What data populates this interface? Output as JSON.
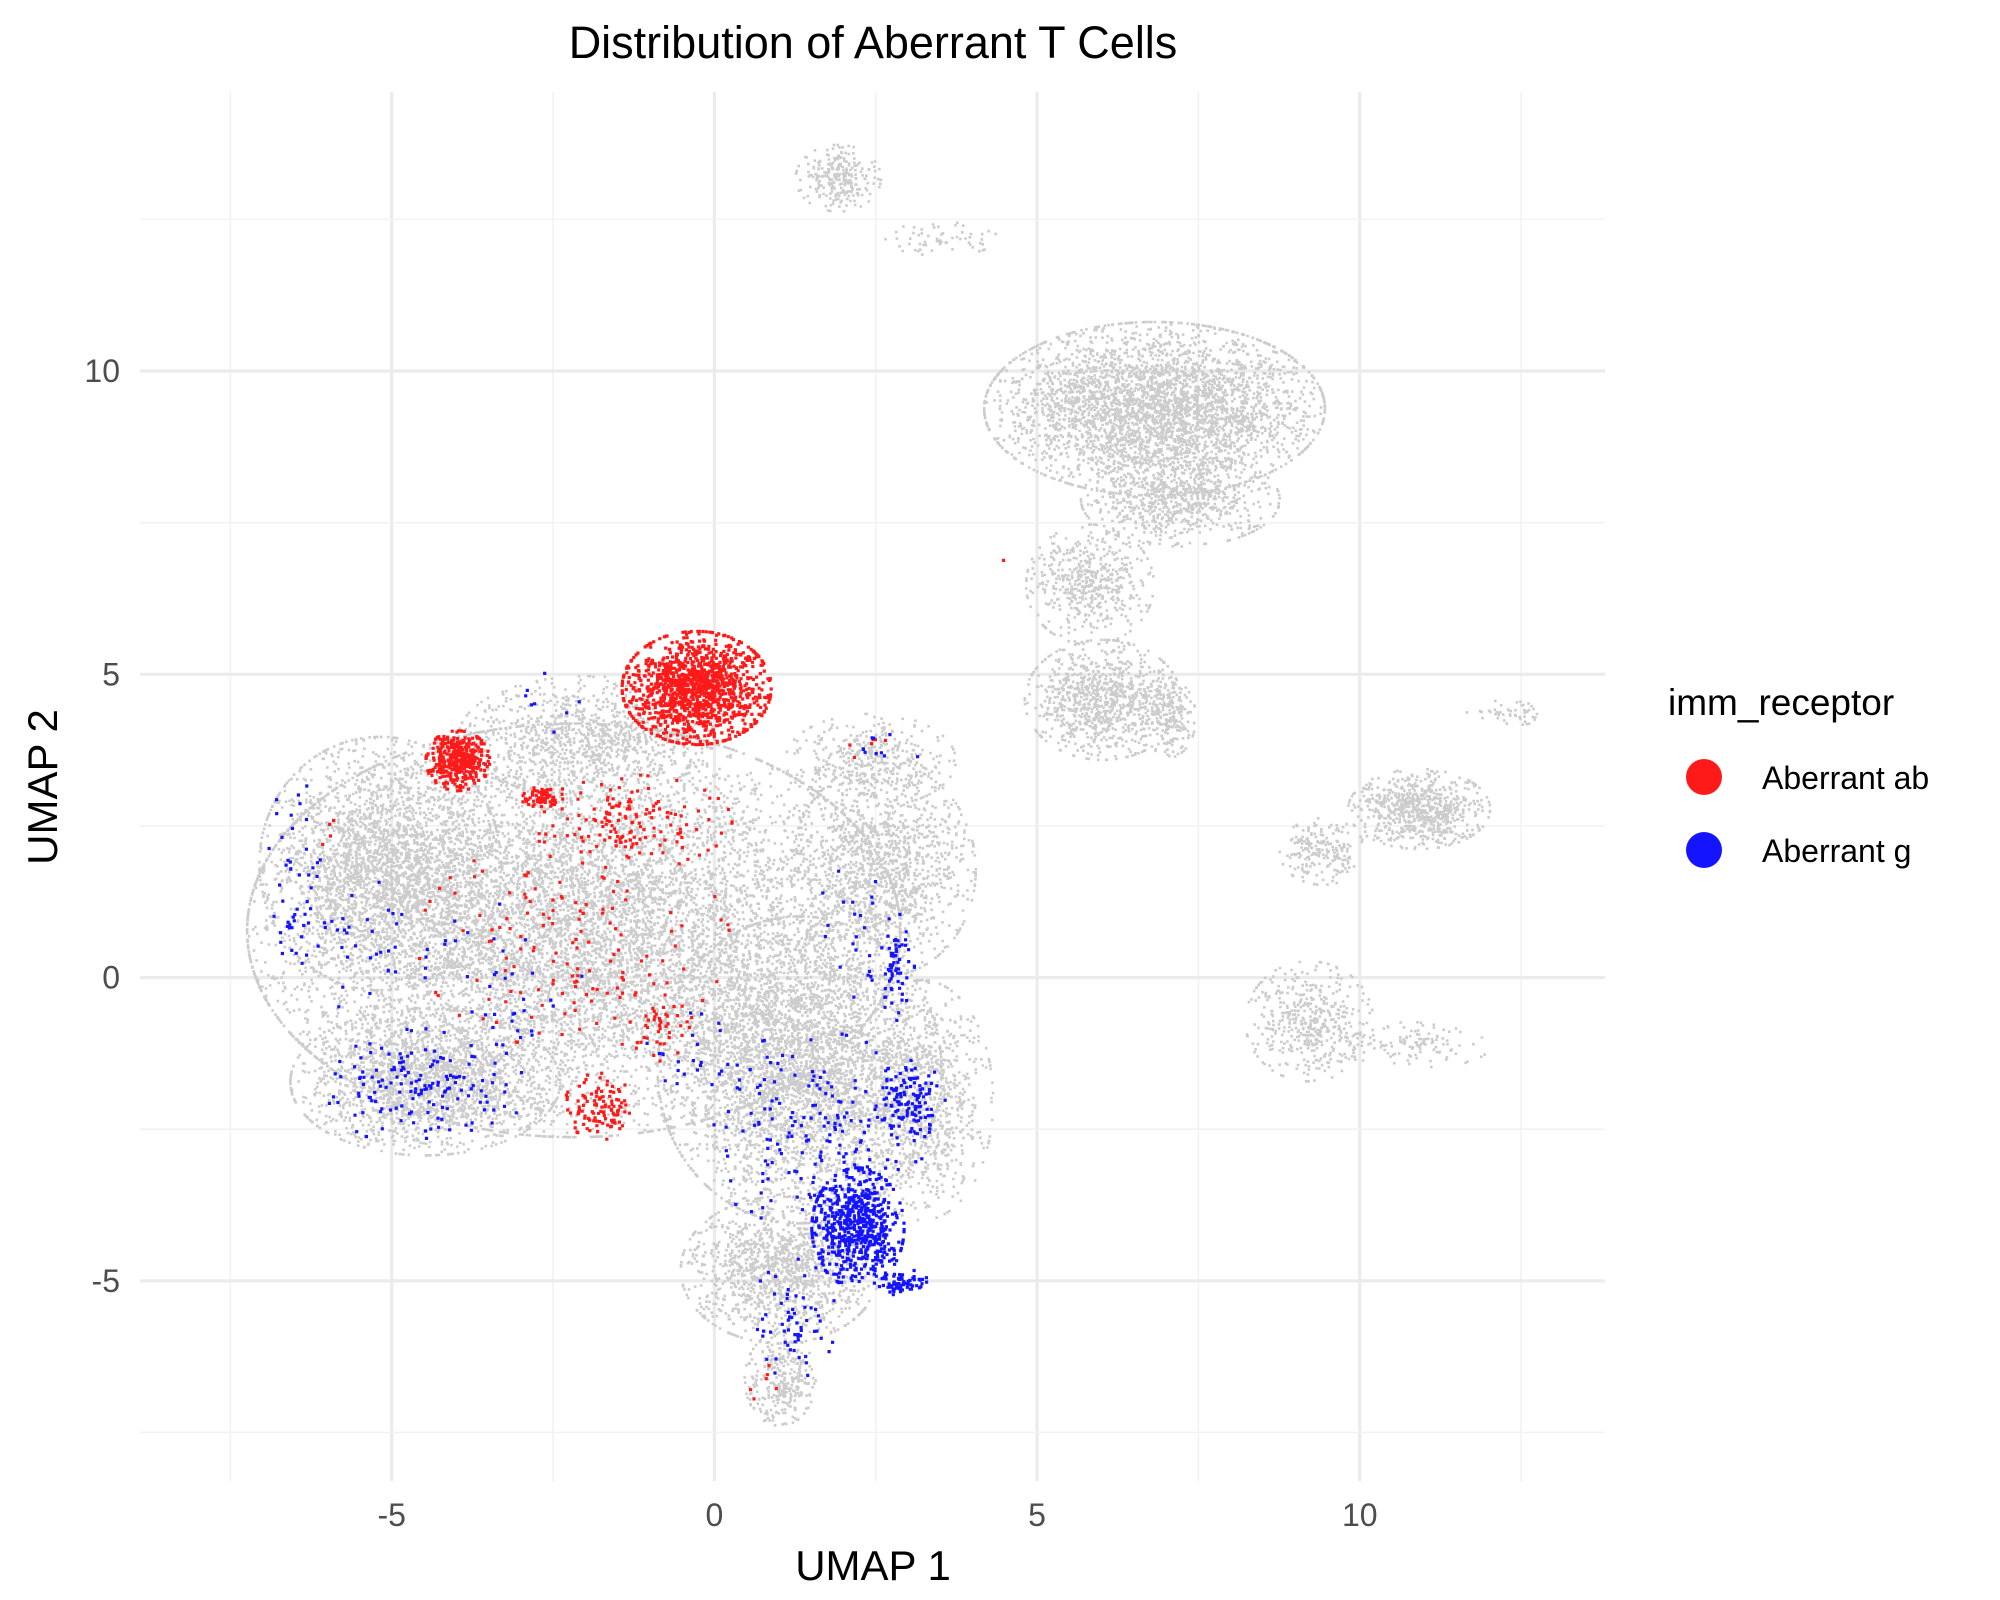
{
  "chart_data": {
    "type": "scatter",
    "title": "Distribution of Aberrant T Cells",
    "xlabel": "UMAP 1",
    "ylabel": "UMAP 2",
    "xlim": [
      -8.9,
      13.8
    ],
    "ylim": [
      -8.3,
      14.6
    ],
    "x_ticks": [
      -5,
      0,
      5,
      10
    ],
    "y_ticks": [
      -5,
      0,
      5,
      10
    ],
    "grid": true,
    "legend": {
      "title": "imm_receptor",
      "position": "right",
      "entries": [
        {
          "label": "Aberrant ab",
          "color": "#ff1a1a"
        },
        {
          "label": "Aberrant g",
          "color": "#1414ff"
        }
      ]
    },
    "background_color": "#cccccc",
    "background_regions": [
      {
        "cx": -2.2,
        "cy": 0.8,
        "rx": 4.6,
        "ry": 3.1,
        "n": 9000
      },
      {
        "cx": -5.2,
        "cy": 1.9,
        "rx": 1.7,
        "ry": 1.9,
        "n": 2200
      },
      {
        "cx": -4.5,
        "cy": -1.7,
        "rx": 1.9,
        "ry": 1.1,
        "n": 1800
      },
      {
        "cx": 1.3,
        "cy": -1.5,
        "rx": 2.0,
        "ry": 2.3,
        "n": 3600
      },
      {
        "cx": 1.0,
        "cy": -4.8,
        "rx": 1.4,
        "ry": 1.1,
        "n": 1300
      },
      {
        "cx": 1.0,
        "cy": -6.6,
        "rx": 0.5,
        "ry": 0.7,
        "n": 300
      },
      {
        "cx": 2.6,
        "cy": 1.8,
        "rx": 1.3,
        "ry": 1.6,
        "n": 1300
      },
      {
        "cx": 3.2,
        "cy": -2.0,
        "rx": 1.0,
        "ry": 1.8,
        "n": 900
      },
      {
        "cx": 2.4,
        "cy": 3.6,
        "rx": 1.2,
        "ry": 0.7,
        "n": 400
      },
      {
        "cx": -2.0,
        "cy": 4.0,
        "rx": 1.8,
        "ry": 0.9,
        "n": 900
      },
      {
        "cx": 6.8,
        "cy": 9.4,
        "rx": 2.4,
        "ry": 1.3,
        "n": 3500
      },
      {
        "cx": 7.2,
        "cy": 7.9,
        "rx": 1.4,
        "ry": 0.7,
        "n": 700
      },
      {
        "cx": 5.8,
        "cy": 6.5,
        "rx": 0.9,
        "ry": 0.9,
        "n": 500
      },
      {
        "cx": 6.0,
        "cy": 4.6,
        "rx": 1.1,
        "ry": 0.9,
        "n": 900
      },
      {
        "cx": 7.0,
        "cy": 4.3,
        "rx": 0.4,
        "ry": 0.6,
        "n": 200
      },
      {
        "cx": 1.9,
        "cy": 13.2,
        "rx": 0.6,
        "ry": 0.5,
        "n": 250
      },
      {
        "cx": 3.5,
        "cy": 12.2,
        "rx": 0.8,
        "ry": 0.25,
        "n": 60
      },
      {
        "cx": 10.9,
        "cy": 2.8,
        "rx": 1.0,
        "ry": 0.6,
        "n": 700
      },
      {
        "cx": 9.4,
        "cy": 2.1,
        "rx": 0.6,
        "ry": 0.5,
        "n": 200
      },
      {
        "cx": 9.2,
        "cy": -0.7,
        "rx": 0.9,
        "ry": 0.9,
        "n": 450
      },
      {
        "cx": 10.8,
        "cy": -1.1,
        "rx": 1.1,
        "ry": 0.35,
        "n": 120
      },
      {
        "cx": 12.3,
        "cy": 4.4,
        "rx": 0.6,
        "ry": 0.2,
        "n": 50
      }
    ],
    "series": [
      {
        "name": "Aberrant ab",
        "color": "#ff1a1a",
        "clusters": [
          {
            "cx": -0.3,
            "cy": 4.8,
            "rx": 1.05,
            "ry": 0.85,
            "n": 1300
          },
          {
            "cx": -4.0,
            "cy": 3.6,
            "rx": 0.45,
            "ry": 0.45,
            "n": 400
          },
          {
            "cx": -2.7,
            "cy": 3.0,
            "rx": 0.3,
            "ry": 0.15,
            "n": 70
          },
          {
            "cx": -1.4,
            "cy": 2.6,
            "rx": 1.5,
            "ry": 0.7,
            "n": 150
          },
          {
            "cx": -2.2,
            "cy": 0.6,
            "rx": 2.2,
            "ry": 1.6,
            "n": 140
          },
          {
            "cx": -1.8,
            "cy": -2.1,
            "rx": 0.5,
            "ry": 0.5,
            "n": 110
          },
          {
            "cx": -0.9,
            "cy": -0.8,
            "rx": 0.5,
            "ry": 0.5,
            "n": 40
          },
          {
            "cx": 0.8,
            "cy": -6.6,
            "rx": 0.3,
            "ry": 0.4,
            "n": 6
          },
          {
            "cx": 4.4,
            "cy": 6.9,
            "rx": 0.05,
            "ry": 0.05,
            "n": 1
          },
          {
            "cx": 2.3,
            "cy": 3.8,
            "rx": 0.6,
            "ry": 0.4,
            "n": 6
          },
          {
            "cx": -6.0,
            "cy": 2.5,
            "rx": 0.3,
            "ry": 0.3,
            "n": 4
          }
        ]
      },
      {
        "name": "Aberrant g",
        "color": "#1414ff",
        "clusters": [
          {
            "cx": 2.2,
            "cy": -4.1,
            "rx": 0.65,
            "ry": 0.9,
            "n": 650
          },
          {
            "cx": 2.9,
            "cy": -5.0,
            "rx": 0.35,
            "ry": 0.2,
            "n": 70
          },
          {
            "cx": 3.0,
            "cy": -2.0,
            "rx": 0.5,
            "ry": 0.6,
            "n": 130
          },
          {
            "cx": 1.5,
            "cy": -2.5,
            "rx": 1.6,
            "ry": 1.5,
            "n": 170
          },
          {
            "cx": 1.2,
            "cy": -5.6,
            "rx": 0.6,
            "ry": 0.9,
            "n": 60
          },
          {
            "cx": 2.8,
            "cy": 0.2,
            "rx": 0.25,
            "ry": 0.8,
            "n": 60
          },
          {
            "cx": 2.2,
            "cy": 0.8,
            "rx": 0.6,
            "ry": 1.0,
            "n": 25
          },
          {
            "cx": -4.5,
            "cy": -1.8,
            "rx": 1.4,
            "ry": 0.9,
            "n": 150
          },
          {
            "cx": -6.5,
            "cy": 1.5,
            "rx": 0.5,
            "ry": 1.6,
            "n": 50
          },
          {
            "cx": -3.5,
            "cy": -0.2,
            "rx": 1.6,
            "ry": 1.6,
            "n": 40
          },
          {
            "cx": -5.3,
            "cy": 0.5,
            "rx": 1.0,
            "ry": 1.0,
            "n": 30
          },
          {
            "cx": 2.6,
            "cy": 3.8,
            "rx": 0.5,
            "ry": 0.4,
            "n": 10
          },
          {
            "cx": -2.5,
            "cy": 4.6,
            "rx": 0.6,
            "ry": 0.5,
            "n": 8
          },
          {
            "cx": -0.5,
            "cy": -1.2,
            "rx": 0.8,
            "ry": 0.6,
            "n": 20
          }
        ]
      }
    ]
  }
}
